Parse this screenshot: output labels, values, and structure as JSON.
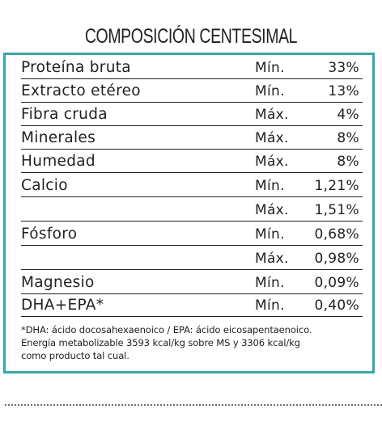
{
  "title": "COMPOSICIÓN CENTESIMAL",
  "rows": [
    {
      "name": "Proteína bruta",
      "qualifier": "Mín.",
      "value": "33%"
    },
    {
      "name": "Extracto etéreo",
      "qualifier": "Mín.",
      "value": "13%"
    },
    {
      "name": "Fibra cruda",
      "qualifier": "Máx.",
      "value": "4%"
    },
    {
      "name": "Minerales",
      "qualifier": "Máx.",
      "value": "8%"
    },
    {
      "name": "Humedad",
      "qualifier": "Máx.",
      "value": "8%"
    },
    {
      "name": "Calcio",
      "qualifier": "Mín.",
      "value": "1,21%"
    },
    {
      "name": "",
      "qualifier": "Máx.",
      "value": "1,51%"
    },
    {
      "name": "Fósforo",
      "qualifier": "Mín.",
      "value": "0,68%"
    },
    {
      "name": "",
      "qualifier": "Máx.",
      "value": "0,98%"
    },
    {
      "name": "Magnesio",
      "qualifier": "Mín.",
      "value": "0,09%"
    },
    {
      "name": "DHA+EPA*",
      "qualifier": "Mín.",
      "value": "0,40%"
    }
  ],
  "footnote": [
    "*DHA: ácido docosahexaenoico / EPA: ácido eicosapentaenoico.",
    "Energía metabolizable 3593 kcal/kg sobre MS y 3306 kcal/kg",
    "como producto tal cual."
  ],
  "colors": {
    "frame": "#3aa6a6",
    "text": "#231f20"
  }
}
